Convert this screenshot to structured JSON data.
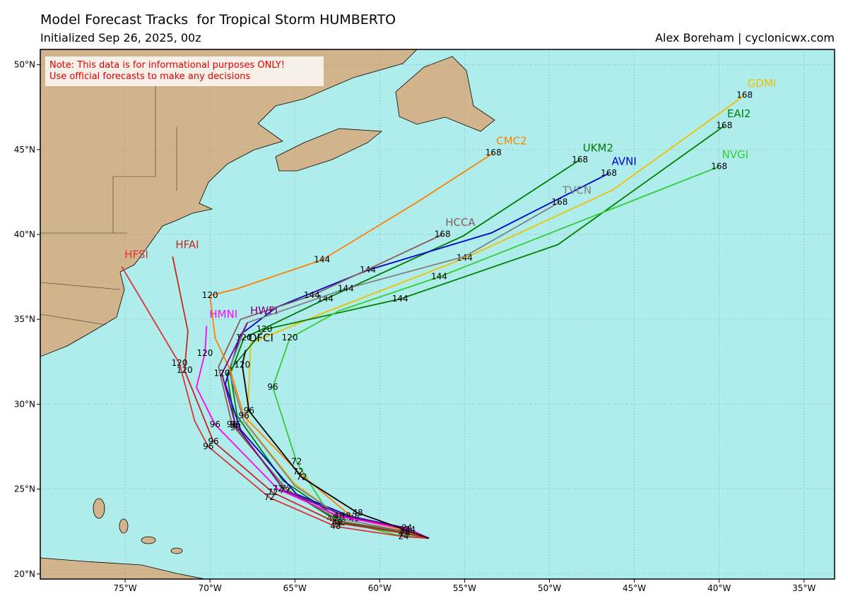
{
  "header": {
    "title": "Model Forecast Tracks  for Tropical Storm HUMBERTO",
    "subtitle": "Initialized Sep 26, 2025, 00z",
    "credit": "Alex Boreham | cyclonicwx.com"
  },
  "note": [
    "Note: This data is for informational purposes ONLY!",
    "Use official forecasts to make any decisions"
  ],
  "map": {
    "xlim": [
      -80,
      -33.2
    ],
    "ylim": [
      19.7,
      50.9
    ],
    "xticks": [
      {
        "value": -75,
        "label": "75°W"
      },
      {
        "value": -70,
        "label": "70°W"
      },
      {
        "value": -65,
        "label": "65°W"
      },
      {
        "value": -60,
        "label": "60°W"
      },
      {
        "value": -55,
        "label": "55°W"
      },
      {
        "value": -50,
        "label": "50°W"
      },
      {
        "value": -45,
        "label": "45°W"
      },
      {
        "value": -40,
        "label": "40°W"
      },
      {
        "value": -35,
        "label": "35°W"
      }
    ],
    "yticks": [
      {
        "value": 20,
        "label": "20°N"
      },
      {
        "value": 25,
        "label": "25°N"
      },
      {
        "value": 30,
        "label": "30°N"
      },
      {
        "value": 35,
        "label": "35°N"
      },
      {
        "value": 40,
        "label": "40°N"
      },
      {
        "value": 45,
        "label": "45°N"
      },
      {
        "value": 50,
        "label": "50°N"
      }
    ],
    "grid": true,
    "tracks": [
      {
        "name": "GDMI",
        "color": "#f0c000",
        "lon": [
          -57.1,
          -58.6,
          -62.5,
          -65.0,
          -67.8,
          -67.6,
          -63.5,
          -55.0,
          -46.3,
          -38.5
        ],
        "lat": [
          22.1,
          22.6,
          23.5,
          25.3,
          28.8,
          33.6,
          35.3,
          38.6,
          42.6,
          48.2
        ],
        "hours": [
          null,
          null,
          null,
          null,
          null,
          null,
          null,
          144,
          null,
          168
        ]
      },
      {
        "name": "EAI2",
        "color": "#008000",
        "lon": [
          -57.1,
          -58.6,
          -62.3,
          -65.5,
          -68.5,
          -69.0,
          -66.8,
          -58.8,
          -49.5,
          -39.7
        ],
        "lat": [
          22.1,
          22.4,
          23.0,
          25.0,
          28.6,
          31.8,
          34.4,
          36.2,
          39.4,
          46.4
        ],
        "hours": [
          null,
          24,
          48,
          72,
          96,
          null,
          120,
          144,
          null,
          168
        ]
      },
      {
        "name": "NVGI",
        "color": "#33cc33",
        "lon": [
          -57.1,
          -59.0,
          -62.8,
          -64.9,
          -66.3,
          -65.3,
          -62.4,
          -56.5,
          -40.0
        ],
        "lat": [
          22.1,
          22.3,
          23.25,
          26.6,
          31.0,
          33.9,
          35.5,
          37.5,
          44.0
        ],
        "hours": [
          null,
          null,
          48,
          72,
          96,
          120,
          null,
          144,
          168
        ]
      },
      {
        "name": "UKM2",
        "color": "#007a00",
        "lon": [
          -57.1,
          -58.4,
          -62.0,
          -65.7,
          -68.4,
          -68.8,
          -68.0,
          -63.2,
          -55.1,
          -48.2
        ],
        "lat": [
          22.1,
          22.4,
          23.0,
          25.5,
          29.3,
          31.8,
          33.9,
          36.2,
          39.9,
          44.4
        ],
        "hours": [
          null,
          null,
          null,
          null,
          null,
          null,
          120,
          144,
          null,
          168
        ]
      },
      {
        "name": "AVNI",
        "color": "#0000cc",
        "lon": [
          -57.1,
          -58.4,
          -61.75,
          -64.9,
          -68.2,
          -69.1,
          -68.2,
          -66.1,
          -60.7,
          -53.4,
          -46.5
        ],
        "lat": [
          22.1,
          22.7,
          23.4,
          24.7,
          28.5,
          31.2,
          34.1,
          35.7,
          37.9,
          40.1,
          43.6
        ],
        "hours": [
          null,
          null,
          null,
          null,
          null,
          null,
          null,
          null,
          144,
          null,
          168
        ]
      },
      {
        "name": "TVCN",
        "color": "#808080",
        "lon": [
          -57.1,
          -58.5,
          -62.0,
          -65.0,
          -68.0,
          -68.9,
          -67.8,
          -62.0,
          -55.0,
          -49.4
        ],
        "lat": [
          22.1,
          22.5,
          23.2,
          25.2,
          29.0,
          32.0,
          34.8,
          36.8,
          38.7,
          41.9
        ],
        "hours": [
          null,
          null,
          null,
          null,
          null,
          null,
          null,
          144,
          null,
          168
        ]
      },
      {
        "name": "HCCA",
        "color": "#8b5a5a",
        "lon": [
          -57.1,
          -58.5,
          -62.3,
          -65.5,
          -68.7,
          -69.5,
          -68.2,
          -64.0,
          -56.3
        ],
        "lat": [
          22.1,
          22.5,
          23.1,
          25.0,
          28.8,
          32.2,
          35.0,
          36.4,
          40.0
        ],
        "hours": [
          null,
          null,
          null,
          null,
          96,
          null,
          null,
          144,
          168
        ]
      },
      {
        "name": "CMC2",
        "color": "#ff8000",
        "lon": [
          -57.1,
          -58.6,
          -61.5,
          -64.8,
          -68.0,
          -68.8,
          -69.7,
          -70.0,
          -68.4,
          -63.4,
          -57.8,
          -53.3
        ],
        "lat": [
          22.1,
          22.6,
          23.25,
          26.0,
          29.3,
          32.0,
          33.9,
          36.4,
          36.8,
          38.5,
          41.9,
          44.8
        ],
        "hours": [
          null,
          null,
          48,
          72,
          96,
          null,
          null,
          120,
          null,
          144,
          null,
          168
        ]
      },
      {
        "name": "HWFI",
        "color": "#800080",
        "lon": [
          -57.1,
          -58.4,
          -62.0,
          -65.6,
          -68.5,
          -69.3,
          -67.8
        ],
        "lat": [
          22.1,
          22.7,
          23.4,
          24.9,
          28.8,
          31.8,
          34.8
        ],
        "hours": [
          null,
          24,
          48,
          72,
          96,
          120,
          null
        ]
      },
      {
        "name": "HMNI",
        "color": "#ff00ff",
        "lon": [
          -57.1,
          -58.2,
          -62.4,
          -66.0,
          -69.7,
          -70.8,
          -70.3,
          -70.2
        ],
        "lat": [
          22.1,
          22.6,
          23.4,
          25.0,
          28.8,
          31.0,
          33.0,
          34.6
        ],
        "hours": [
          null,
          24,
          48,
          72,
          96,
          null,
          120,
          null
        ]
      },
      {
        "name": "HFAI",
        "color": "#cc2222",
        "lon": [
          -57.1,
          -58.5,
          -62.5,
          -66.3,
          -69.8,
          -71.5,
          -71.3,
          -72.2
        ],
        "lat": [
          22.1,
          22.4,
          23.0,
          24.8,
          27.8,
          32.0,
          34.3,
          38.7
        ],
        "hours": [
          null,
          24,
          48,
          72,
          96,
          120,
          null,
          null
        ]
      },
      {
        "name": "HFSI",
        "color": "#dd3333",
        "lon": [
          -57.1,
          -58.6,
          -62.6,
          -66.5,
          -70.1,
          -70.9,
          -71.8,
          -75.2
        ],
        "lat": [
          22.1,
          22.2,
          22.8,
          24.5,
          27.5,
          29.0,
          32.4,
          38.1
        ],
        "hours": [
          null,
          24,
          48,
          72,
          96,
          null,
          120,
          null
        ]
      },
      {
        "name": "OFCI",
        "color": "#000000",
        "lon": [
          -57.1,
          -58.5,
          -61.3,
          -64.6,
          -67.7,
          -68.1,
          -67.9
        ],
        "lat": [
          22.1,
          22.6,
          23.6,
          25.7,
          29.6,
          32.3,
          33.2
        ],
        "hours": [
          null,
          24,
          48,
          72,
          96,
          120,
          null
        ]
      }
    ]
  }
}
